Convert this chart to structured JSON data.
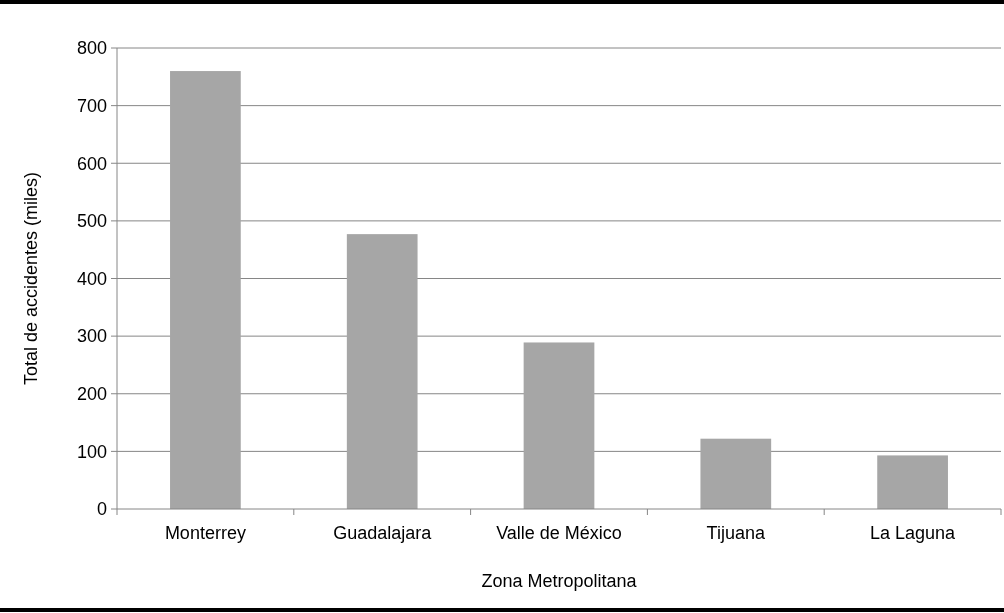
{
  "chart_data": {
    "type": "bar",
    "xlabel": "Zona Metropolitana",
    "ylabel": "Total de accidentes (miles)",
    "categories": [
      "Monterrey",
      "Guadalajara",
      "Valle de México",
      "Tijuana",
      "La Laguna"
    ],
    "values": [
      760,
      477,
      289,
      122,
      93
    ],
    "color": "#a6a6a6",
    "ylim": [
      0,
      800
    ],
    "yticks": [
      0,
      100,
      200,
      300,
      400,
      500,
      600,
      700,
      800
    ],
    "grid": "y"
  }
}
